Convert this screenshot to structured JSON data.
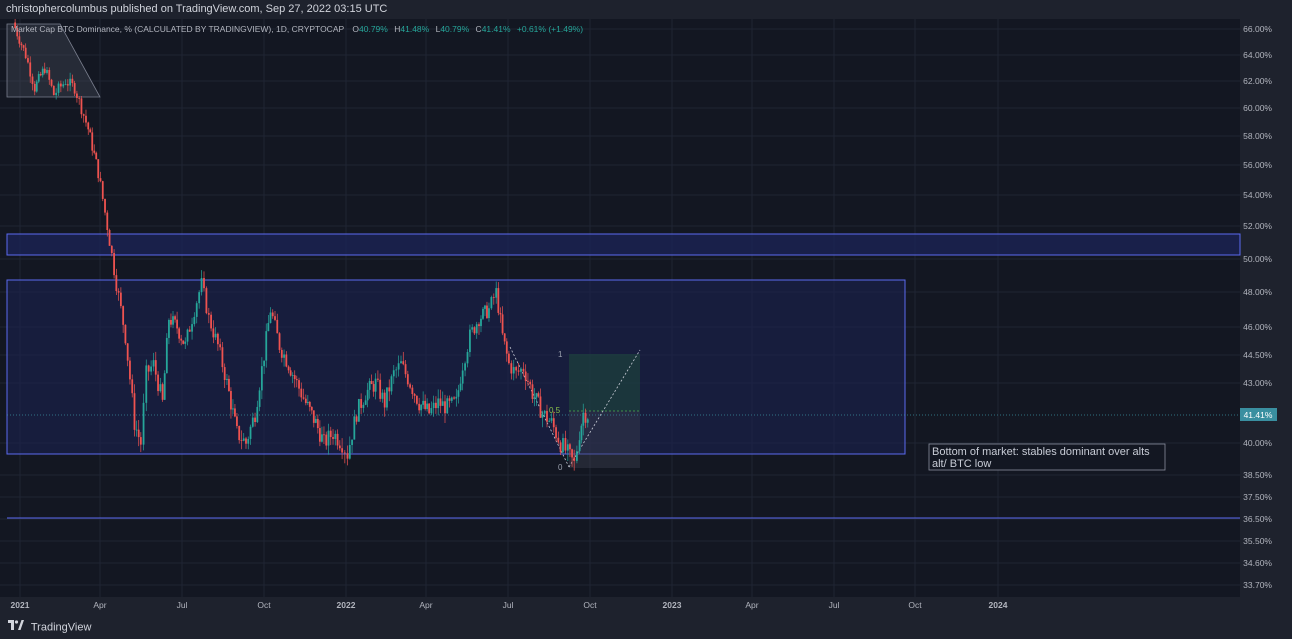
{
  "header": {
    "publish_line": "christophercolumbus published on TradingView.com, Sep 27, 2022 03:15 UTC"
  },
  "footer": {
    "brand": "TradingView"
  },
  "legend": {
    "symbol": "Market Cap BTC Dominance, % (CALCULATED BY TRADINGVIEW), 1D, CRYPTOCAP",
    "o_label": "O",
    "o_value": "40.79%",
    "h_label": "H",
    "h_value": "41.48%",
    "l_label": "L",
    "l_value": "40.79%",
    "c_label": "C",
    "c_value": "41.41%",
    "change": "+0.61% (+1.49%)"
  },
  "colors": {
    "background": "#131722",
    "panel": "#1e222d",
    "up": "#26a69a",
    "down": "#ef5350",
    "zone_stroke": "#5b6af0",
    "zone_fill": "#1a2250",
    "price_badge": "#3a8fa0"
  },
  "annotation": {
    "line1": "Bottom of market: stables dominant over alts",
    "line2": "alt/ BTC low"
  },
  "fib_labels": {
    "top": "1",
    "mid": "0.5",
    "bottom": "0"
  },
  "chart_data": {
    "type": "candlestick",
    "title": "Market Cap BTC Dominance, % (CALCULATED BY TRADINGVIEW), 1D, CRYPTOCAP",
    "y_axis_ticks": [
      "66.00%",
      "64.00%",
      "62.00%",
      "60.00%",
      "58.00%",
      "56.00%",
      "54.00%",
      "52.00%",
      "50.00%",
      "48.00%",
      "46.00%",
      "44.50%",
      "43.00%",
      "41.41%",
      "40.00%",
      "38.50%",
      "37.50%",
      "36.50%",
      "35.50%",
      "34.60%",
      "33.70%"
    ],
    "x_axis_ticks": [
      "2021",
      "Apr",
      "Jul",
      "Oct",
      "2022",
      "Apr",
      "Jul",
      "Oct",
      "2023",
      "Apr",
      "Jul",
      "Oct",
      "2024"
    ],
    "last_price": "41.41%",
    "path_points": [
      [
        "2021-01-01",
        66.5
      ],
      [
        "2021-01-15",
        64.0
      ],
      [
        "2021-01-25",
        61.5
      ],
      [
        "2021-02-05",
        63.0
      ],
      [
        "2021-02-15",
        61.0
      ],
      [
        "2021-02-28",
        62.0
      ],
      [
        "2021-03-10",
        61.5
      ],
      [
        "2021-03-25",
        58.5
      ],
      [
        "2021-04-05",
        55.5
      ],
      [
        "2021-04-15",
        52.0
      ],
      [
        "2021-04-25",
        48.5
      ],
      [
        "2021-05-05",
        45.5
      ],
      [
        "2021-05-15",
        41.0
      ],
      [
        "2021-05-22",
        40.0
      ],
      [
        "2021-05-28",
        43.5
      ],
      [
        "2021-06-05",
        44.0
      ],
      [
        "2021-06-15",
        42.0
      ],
      [
        "2021-06-22",
        46.5
      ],
      [
        "2021-07-01",
        46.0
      ],
      [
        "2021-07-10",
        45.0
      ],
      [
        "2021-07-20",
        47.0
      ],
      [
        "2021-07-28",
        48.5
      ],
      [
        "2021-08-05",
        46.5
      ],
      [
        "2021-08-15",
        45.0
      ],
      [
        "2021-08-25",
        43.0
      ],
      [
        "2021-09-05",
        40.5
      ],
      [
        "2021-09-15",
        40.0
      ],
      [
        "2021-09-25",
        41.5
      ],
      [
        "2021-10-05",
        44.5
      ],
      [
        "2021-10-12",
        47.0
      ],
      [
        "2021-10-22",
        45.0
      ],
      [
        "2021-11-01",
        44.0
      ],
      [
        "2021-11-10",
        43.0
      ],
      [
        "2021-11-20",
        42.0
      ],
      [
        "2021-12-01",
        41.0
      ],
      [
        "2021-12-10",
        40.0
      ],
      [
        "2021-12-20",
        40.5
      ],
      [
        "2021-12-30",
        40.0
      ],
      [
        "2022-01-05",
        39.5
      ],
      [
        "2022-01-15",
        41.5
      ],
      [
        "2022-01-25",
        42.5
      ],
      [
        "2022-02-05",
        43.0
      ],
      [
        "2022-02-15",
        42.0
      ],
      [
        "2022-02-25",
        43.5
      ],
      [
        "2022-03-05",
        44.0
      ],
      [
        "2022-03-15",
        43.0
      ],
      [
        "2022-03-25",
        42.0
      ],
      [
        "2022-04-05",
        41.5
      ],
      [
        "2022-04-15",
        42.0
      ],
      [
        "2022-04-25",
        41.8
      ],
      [
        "2022-05-05",
        42.0
      ],
      [
        "2022-05-12",
        44.0
      ],
      [
        "2022-05-20",
        45.5
      ],
      [
        "2022-05-30",
        46.5
      ],
      [
        "2022-06-10",
        47.0
      ],
      [
        "2022-06-18",
        48.0
      ],
      [
        "2022-06-25",
        45.5
      ],
      [
        "2022-07-02",
        44.0
      ],
      [
        "2022-07-10",
        43.5
      ],
      [
        "2022-07-18",
        43.8
      ],
      [
        "2022-07-28",
        42.5
      ],
      [
        "2022-08-08",
        41.5
      ],
      [
        "2022-08-18",
        41.0
      ],
      [
        "2022-08-28",
        40.0
      ],
      [
        "2022-09-05",
        39.5
      ],
      [
        "2022-09-12",
        39.0
      ],
      [
        "2022-09-18",
        40.5
      ],
      [
        "2022-09-22",
        41.5
      ],
      [
        "2022-09-27",
        41.41
      ]
    ],
    "levels": [
      {
        "name": "upper-zone",
        "from": 50.3,
        "to": 51.6
      },
      {
        "name": "range-zone",
        "from": 39.9,
        "to": 48.8
      },
      {
        "name": "support-line",
        "value": 36.6
      }
    ]
  }
}
